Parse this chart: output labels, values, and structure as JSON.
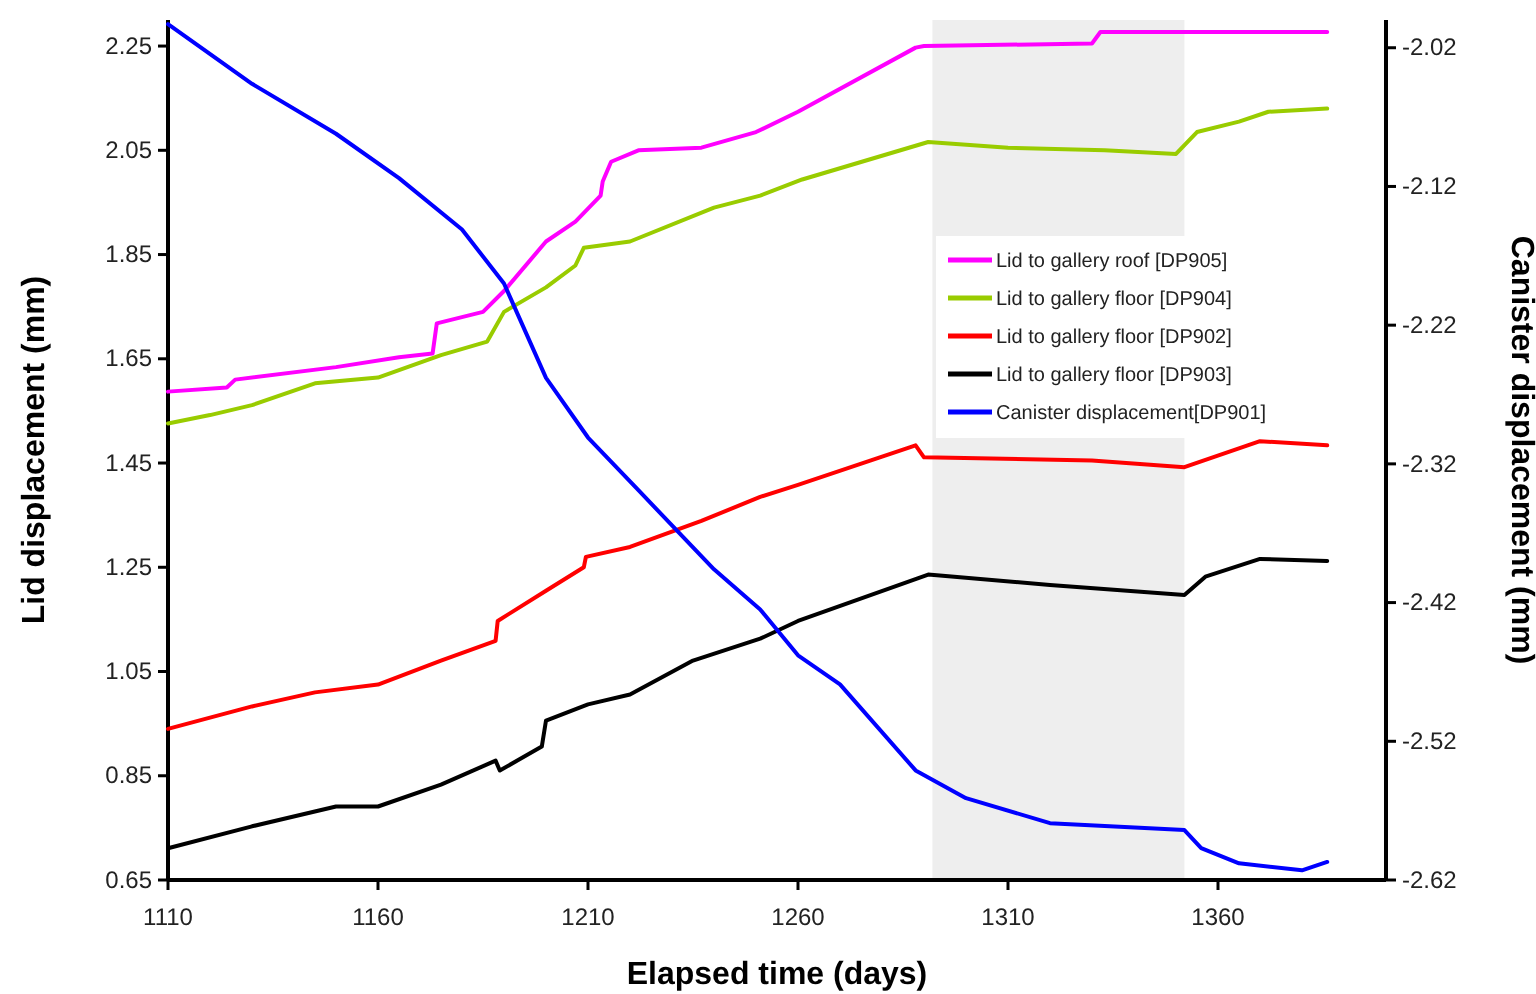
{
  "chart_data": {
    "type": "line",
    "xlabel": "Elapsed time (days)",
    "ylabel": "Lid displacement (mm)",
    "y2label": "Canister displacement (mm)",
    "xlim": [
      1110,
      1400
    ],
    "xticks": [
      1110,
      1160,
      1210,
      1260,
      1310,
      1360
    ],
    "ylim": [
      0.65,
      2.3
    ],
    "yticks": [
      {
        "value": 0.65,
        "label": "0.65"
      },
      {
        "value": 0.85,
        "label": "0.85"
      },
      {
        "value": 1.05,
        "label": "1.05"
      },
      {
        "value": 1.25,
        "label": "1.25"
      },
      {
        "value": 1.45,
        "label": "1.45"
      },
      {
        "value": 1.65,
        "label": "1.65"
      },
      {
        "value": 1.85,
        "label": "1.85"
      },
      {
        "value": 2.05,
        "label": "2.05"
      },
      {
        "value": 2.25,
        "label": "2.25"
      }
    ],
    "y2lim": [
      -2.62,
      -2.0
    ],
    "y2ticks": [
      {
        "value": -2.62,
        "label": "-2.62"
      },
      {
        "value": -2.52,
        "label": "-2.52"
      },
      {
        "value": -2.42,
        "label": "-2.42"
      },
      {
        "value": -2.32,
        "label": "-2.32"
      },
      {
        "value": -2.22,
        "label": "-2.22"
      },
      {
        "value": -2.12,
        "label": "-2.12"
      },
      {
        "value": -2.02,
        "label": "-2.02"
      }
    ],
    "grid": false,
    "legend": "right",
    "marker": "none",
    "line_style": "solid",
    "bands": [
      {
        "axis": "x",
        "from": 1292,
        "to": 1352,
        "color": "#eeeeee"
      }
    ],
    "series": [
      {
        "name": "Lid to gallery roof [DP905]",
        "color": "#ff00ff",
        "x": [
          1110,
          1124,
          1126,
          1150,
          1165,
          1173,
          1174,
          1185,
          1190,
          1200,
          1207,
          1213,
          1213.5,
          1215.5,
          1222,
          1237,
          1250,
          1260,
          1288,
          1290,
          1330,
          1332,
          1386
        ],
        "values": [
          1.587,
          1.595,
          1.61,
          1.634,
          1.653,
          1.66,
          1.718,
          1.74,
          1.78,
          1.875,
          1.913,
          1.963,
          1.99,
          2.028,
          2.05,
          2.055,
          2.085,
          2.124,
          2.247,
          2.25,
          2.255,
          2.277,
          2.277
        ]
      },
      {
        "name": "Lid to gallery floor [DP904]",
        "color": "#99cc00",
        "x": [
          1110,
          1120,
          1130,
          1145,
          1160,
          1175,
          1186,
          1190,
          1200,
          1207,
          1209,
          1220,
          1240,
          1251,
          1261,
          1291,
          1310,
          1333,
          1350,
          1355,
          1365,
          1372,
          1386
        ],
        "values": [
          1.526,
          1.542,
          1.561,
          1.603,
          1.614,
          1.657,
          1.683,
          1.74,
          1.787,
          1.829,
          1.863,
          1.875,
          1.94,
          1.963,
          1.994,
          2.066,
          2.055,
          2.05,
          2.043,
          2.085,
          2.105,
          2.124,
          2.13
        ]
      },
      {
        "name": "Lid to gallery floor [DP902]",
        "color": "#ff0000",
        "x": [
          1110,
          1130,
          1145,
          1160,
          1175,
          1188,
          1188.5,
          1200,
          1209,
          1209.5,
          1220,
          1237,
          1251,
          1260,
          1288,
          1290,
          1330,
          1352,
          1370,
          1386
        ],
        "values": [
          0.94,
          0.983,
          1.01,
          1.025,
          1.071,
          1.109,
          1.147,
          1.205,
          1.25,
          1.27,
          1.289,
          1.339,
          1.385,
          1.408,
          1.484,
          1.461,
          1.455,
          1.442,
          1.492,
          1.484
        ]
      },
      {
        "name": "Lid to gallery floor [DP903]",
        "color": "#000000",
        "x": [
          1110,
          1130,
          1150,
          1160,
          1175,
          1188,
          1189,
          1199,
          1200,
          1210,
          1220,
          1235,
          1251,
          1260,
          1291,
          1320,
          1352,
          1357,
          1370,
          1386
        ],
        "values": [
          0.711,
          0.753,
          0.791,
          0.791,
          0.833,
          0.879,
          0.86,
          0.906,
          0.956,
          0.987,
          1.006,
          1.071,
          1.113,
          1.147,
          1.236,
          1.216,
          1.197,
          1.232,
          1.266,
          1.262
        ]
      },
      {
        "name": "Canister displacement[DP901]",
        "color": "#0000ff",
        "axis": "y2",
        "x": [
          1110,
          1130,
          1150,
          1165,
          1180,
          1190,
          1200,
          1210,
          1222,
          1240,
          1251,
          1260,
          1270,
          1288,
          1300,
          1320,
          1352,
          1356,
          1365,
          1380,
          1386
        ],
        "values": [
          -2.003,
          -2.046,
          -2.082,
          -2.114,
          -2.151,
          -2.19,
          -2.258,
          -2.301,
          -2.339,
          -2.396,
          -2.425,
          -2.458,
          -2.479,
          -2.541,
          -2.561,
          -2.579,
          -2.584,
          -2.597,
          -2.608,
          -2.613,
          -2.607
        ]
      }
    ]
  }
}
